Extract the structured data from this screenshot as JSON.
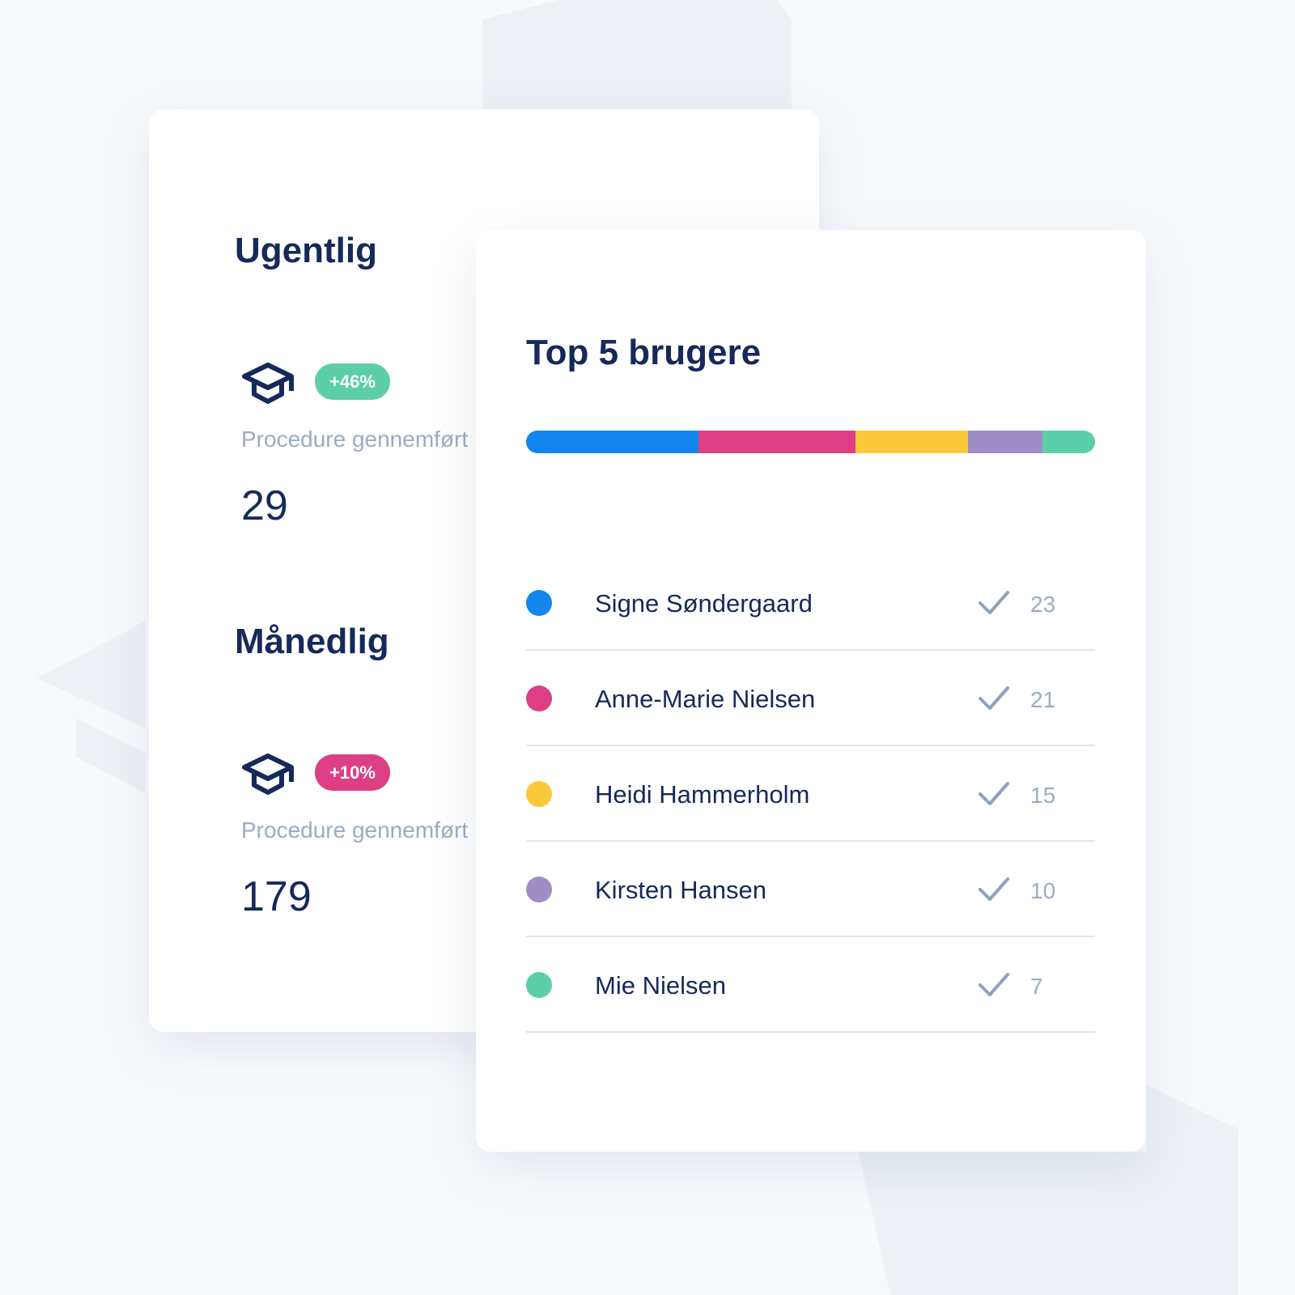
{
  "weekly": {
    "title": "Ugentlig",
    "badge": "+46%",
    "label": "Procedure gennemført",
    "value": 29
  },
  "monthly": {
    "title": "Månedlig",
    "badge": "+10%",
    "label": "Procedure gennemført",
    "value": 179
  },
  "top_users": {
    "title": "Top 5 brugere",
    "users": [
      {
        "name": "Signe Søndergaard",
        "count": 23,
        "color": "#1286ec"
      },
      {
        "name": "Anne-Marie Nielsen",
        "count": 21,
        "color": "#dd3f84"
      },
      {
        "name": "Heidi Hammerholm",
        "count": 15,
        "color": "#fbc93a"
      },
      {
        "name": "Kirsten Hansen",
        "count": 10,
        "color": "#9f8dc6"
      },
      {
        "name": "Mie Nielsen",
        "count": 7,
        "color": "#5ccfaa"
      }
    ]
  }
}
